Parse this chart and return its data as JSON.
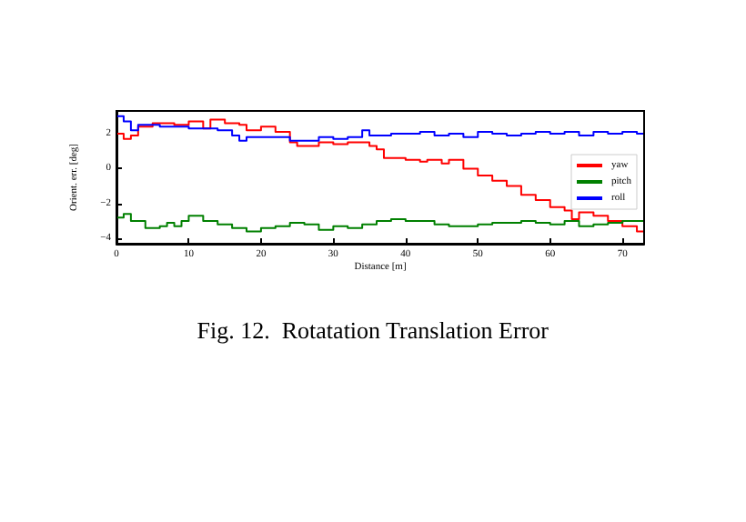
{
  "chart_data": {
    "type": "step",
    "xlabel": "Distance [m]",
    "ylabel": "Orient. err. [deg]",
    "xlim": [
      0,
      73
    ],
    "xticks": [
      0,
      10,
      20,
      30,
      40,
      50,
      60,
      70
    ],
    "ylim": [
      -4.3,
      3.3
    ],
    "yticks": [
      -4,
      -2,
      0,
      2
    ],
    "grid": false,
    "legend": "right",
    "marker": "none",
    "line_style": "solid",
    "annotations": [
      "Fig. 12.  Rotatation Translation Error"
    ],
    "series": [
      {
        "name": "yaw",
        "color": "#ff0000",
        "x": [
          0,
          1,
          2,
          3,
          5,
          8,
          10,
          12,
          13,
          15,
          17,
          18,
          20,
          22,
          24,
          25,
          28,
          30,
          32,
          35,
          36,
          37,
          40,
          42,
          43,
          45,
          46,
          48,
          50,
          52,
          54,
          56,
          58,
          60,
          62,
          63,
          64,
          66,
          68,
          70,
          72,
          73
        ],
        "values": [
          2.0,
          1.7,
          1.9,
          2.4,
          2.6,
          2.5,
          2.7,
          2.3,
          2.8,
          2.6,
          2.5,
          2.2,
          2.4,
          2.1,
          1.5,
          1.3,
          1.5,
          1.4,
          1.5,
          1.3,
          1.1,
          0.6,
          0.5,
          0.4,
          0.5,
          0.3,
          0.5,
          0.0,
          -0.4,
          -0.7,
          -1.0,
          -1.5,
          -1.8,
          -2.2,
          -2.4,
          -2.9,
          -2.5,
          -2.7,
          -3.0,
          -3.3,
          -3.6,
          -3.8
        ]
      },
      {
        "name": "pitch",
        "color": "#008000",
        "x": [
          0,
          1,
          2,
          4,
          6,
          7,
          8,
          9,
          10,
          12,
          14,
          16,
          18,
          20,
          22,
          24,
          26,
          28,
          30,
          32,
          34,
          36,
          38,
          40,
          42,
          44,
          46,
          48,
          50,
          52,
          54,
          56,
          58,
          60,
          62,
          64,
          66,
          68,
          70,
          72,
          73
        ],
        "values": [
          -2.8,
          -2.6,
          -3.0,
          -3.4,
          -3.3,
          -3.1,
          -3.3,
          -3.0,
          -2.7,
          -3.0,
          -3.2,
          -3.4,
          -3.6,
          -3.4,
          -3.3,
          -3.1,
          -3.2,
          -3.5,
          -3.3,
          -3.4,
          -3.2,
          -3.0,
          -2.9,
          -3.0,
          -3.0,
          -3.2,
          -3.3,
          -3.3,
          -3.2,
          -3.1,
          -3.1,
          -3.0,
          -3.1,
          -3.2,
          -3.0,
          -3.3,
          -3.2,
          -3.1,
          -3.0,
          -3.0,
          -3.1
        ]
      },
      {
        "name": "roll",
        "color": "#0000ff",
        "x": [
          0,
          1,
          2,
          3,
          6,
          10,
          14,
          16,
          17,
          18,
          22,
          24,
          26,
          28,
          30,
          32,
          34,
          35,
          38,
          40,
          42,
          44,
          46,
          48,
          50,
          52,
          54,
          56,
          58,
          60,
          62,
          64,
          66,
          68,
          70,
          72,
          73
        ],
        "values": [
          3.0,
          2.7,
          2.2,
          2.5,
          2.4,
          2.3,
          2.2,
          1.9,
          1.6,
          1.8,
          1.8,
          1.6,
          1.6,
          1.8,
          1.7,
          1.8,
          2.2,
          1.9,
          2.0,
          2.0,
          2.1,
          1.9,
          2.0,
          1.8,
          2.1,
          2.0,
          1.9,
          2.0,
          2.1,
          2.0,
          2.1,
          1.9,
          2.1,
          2.0,
          2.1,
          2.0,
          2.1
        ]
      }
    ]
  }
}
